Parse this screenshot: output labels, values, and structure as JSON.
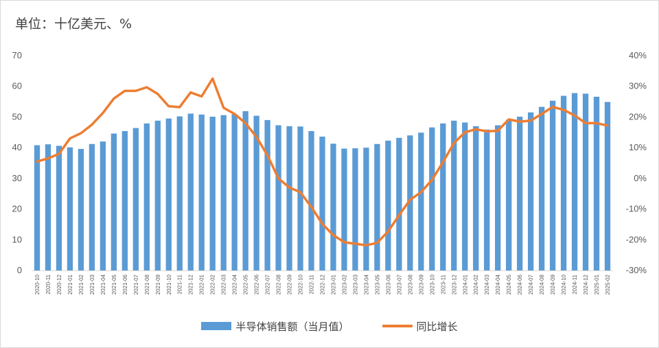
{
  "unit_label": "单位：十亿美元、%",
  "colors": {
    "bar": "#5b9bd5",
    "line": "#ed7d31",
    "axis": "#d9d9d9",
    "text": "#595959"
  },
  "chart_data": {
    "type": "bar+line",
    "title": "",
    "categories": [
      "2020-10",
      "2020-11",
      "2020-12",
      "2021-01",
      "2021-02",
      "2021-03",
      "2021-04",
      "2021-05",
      "2021-06",
      "2021-07",
      "2021-08",
      "2021-09",
      "2021-10",
      "2021-11",
      "2021-12",
      "2022-01",
      "2022-02",
      "2022-03",
      "2022-04",
      "2022-05",
      "2022-06",
      "2022-07",
      "2022-08",
      "2022-09",
      "2022-10",
      "2022-11",
      "2022-12",
      "2023-01",
      "2023-02",
      "2023-03",
      "2023-04",
      "2023-05",
      "2023-06",
      "2023-07",
      "2023-08",
      "2023-09",
      "2023-10",
      "2023-11",
      "2023-12",
      "2024-01",
      "2024-02",
      "2024-03",
      "2024-04",
      "2024-05",
      "2024-06",
      "2024-07",
      "2024-08",
      "2024-09",
      "2024-10",
      "2024-11",
      "2024-12",
      "2025-01",
      "2025-02"
    ],
    "y_left": {
      "min": 0,
      "max": 70,
      "step": 10,
      "ticks": [
        "0",
        "10",
        "20",
        "30",
        "40",
        "50",
        "60",
        "70"
      ]
    },
    "y_right": {
      "min": -30,
      "max": 40,
      "step": 10,
      "ticks": [
        "-30%",
        "-20%",
        "-10%",
        "0%",
        "10%",
        "20%",
        "30%",
        "40%"
      ]
    },
    "series": [
      {
        "name": "半导体销售额（当月值）",
        "type": "bar",
        "axis": "left",
        "values": [
          40.8,
          41.1,
          40.6,
          40.1,
          39.6,
          41.2,
          42.0,
          44.6,
          45.4,
          46.4,
          47.9,
          48.8,
          49.5,
          50.2,
          51.1,
          50.8,
          50.1,
          50.6,
          50.9,
          51.9,
          50.4,
          49.0,
          47.3,
          47.0,
          46.9,
          45.4,
          43.6,
          41.3,
          39.7,
          39.8,
          40.0,
          41.2,
          42.3,
          43.2,
          44.0,
          44.9,
          46.6,
          47.9,
          48.8,
          48.2,
          47.0,
          45.9,
          47.3,
          49.1,
          50.1,
          51.5,
          53.3,
          55.3,
          56.9,
          57.8,
          57.6,
          56.6,
          54.9
        ]
      },
      {
        "name": "同比增长",
        "type": "line",
        "axis": "right",
        "values": [
          5.5,
          6.5,
          8.0,
          13.0,
          14.7,
          17.5,
          21.3,
          26.0,
          28.5,
          28.5,
          29.7,
          27.5,
          23.5,
          23.2,
          28.0,
          26.7,
          32.5,
          23.0,
          21.0,
          18.0,
          13.5,
          7.5,
          0.0,
          -3.0,
          -4.5,
          -9.3,
          -14.8,
          -18.5,
          -20.8,
          -21.3,
          -21.8,
          -21.0,
          -17.3,
          -12.0,
          -7.0,
          -4.5,
          -0.5,
          5.3,
          11.5,
          15.0,
          16.0,
          15.3,
          15.5,
          19.2,
          18.5,
          18.8,
          21.0,
          23.3,
          22.3,
          20.5,
          18.0,
          18.0,
          17.2
        ]
      }
    ],
    "grid": false,
    "legend_position": "bottom"
  }
}
